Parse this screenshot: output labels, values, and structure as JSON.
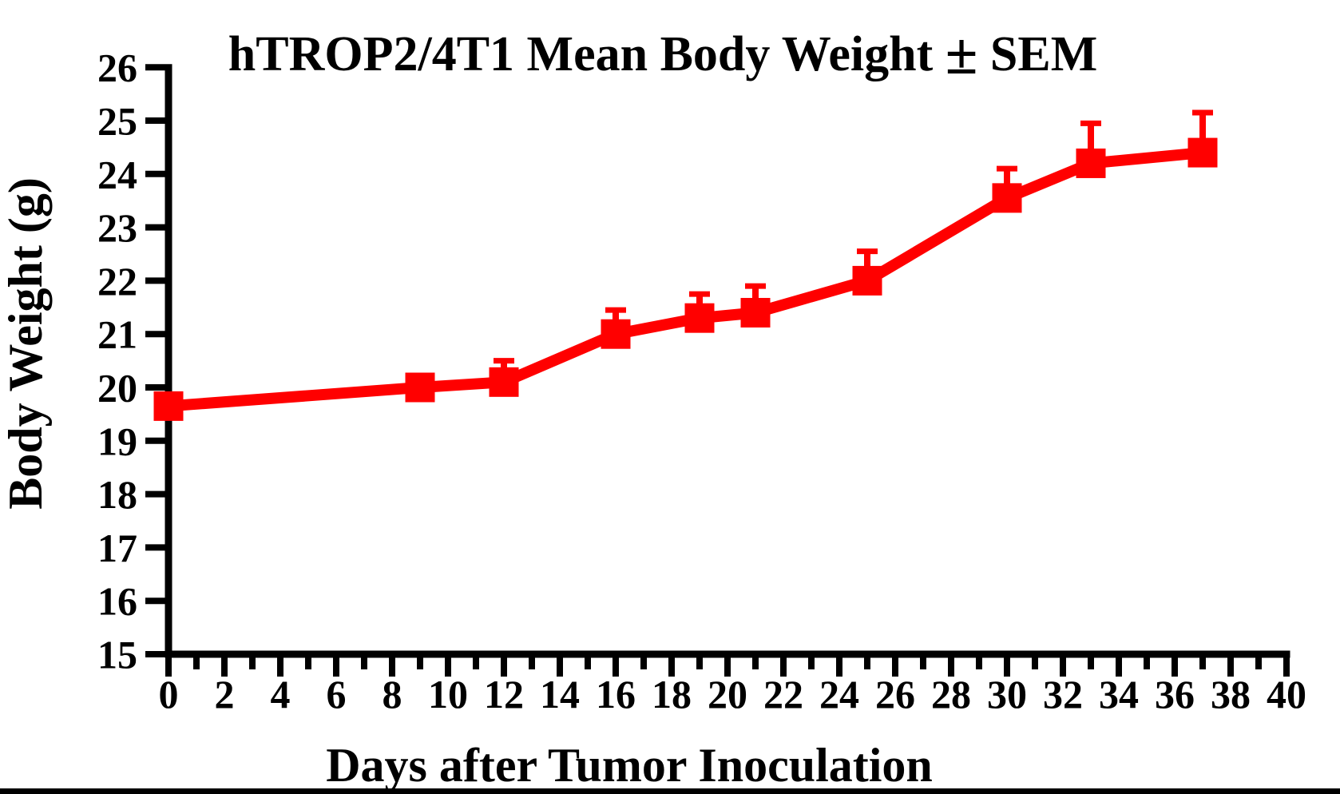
{
  "figure": {
    "title": "hTROP2/4T1 Mean Body Weight ± SEM",
    "xlabel": "Days after Tumor Inoculation",
    "ylabel": "Body Weight (g)"
  },
  "colors": {
    "series": "#FF0000",
    "axis": "#000000",
    "background": "#FFFFFF",
    "bottom_bar": "#000000"
  },
  "chart_data": {
    "type": "line",
    "title": "hTROP2/4T1 Mean Body Weight ± SEM",
    "xlabel": "Days after Tumor Inoculation",
    "ylabel": "Body Weight (g)",
    "xlim": [
      0,
      40
    ],
    "ylim": [
      15,
      26
    ],
    "x_major_tick_step": 2,
    "x_minor_tick_step": 1,
    "y_tick_step": 1,
    "x_tick_labels": [
      "0",
      "2",
      "4",
      "6",
      "8",
      "10",
      "12",
      "14",
      "16",
      "18",
      "20",
      "22",
      "24",
      "26",
      "28",
      "30",
      "32",
      "34",
      "36",
      "38",
      "40"
    ],
    "y_tick_labels": [
      "15",
      "16",
      "17",
      "18",
      "19",
      "20",
      "21",
      "22",
      "23",
      "24",
      "25",
      "26"
    ],
    "grid": false,
    "legend": null,
    "series": [
      {
        "name": "hTROP2/4T1 mean body weight",
        "marker": "square",
        "error_bars": "upper-only",
        "color": "#FF0000",
        "x": [
          0,
          9,
          12,
          16,
          19,
          21,
          25,
          30,
          33,
          37
        ],
        "mean": [
          19.65,
          20.0,
          20.1,
          21.0,
          21.3,
          21.4,
          22.0,
          23.55,
          24.2,
          24.4
        ],
        "sem_upper": [
          0,
          0,
          0.4,
          0.45,
          0.45,
          0.5,
          0.55,
          0.55,
          0.75,
          0.75
        ]
      }
    ]
  }
}
